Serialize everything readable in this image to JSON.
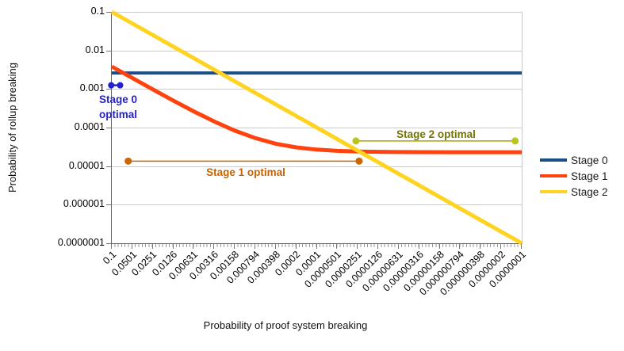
{
  "chart_data": {
    "type": "line",
    "title": "",
    "xlabel": "Probability of proof system breaking",
    "ylabel": "Probability of rollup breaking",
    "x_scale": "log-reversed",
    "y_scale": "log",
    "x_range": [
      0.1,
      1e-07
    ],
    "y_range": [
      0.1,
      1e-07
    ],
    "grid": "horizontal-only",
    "x_tick_labels": [
      "0.1",
      "0.0501",
      "0.0251",
      "0.0126",
      "0.00631",
      "0.00316",
      "0.00158",
      "0.000794",
      "0.000398",
      "0.0002",
      "0.0001",
      "0.0000501",
      "0.0000251",
      "0.0000126",
      "0.00000631",
      "0.00000316",
      "0.00000158",
      "0.000000794",
      "0.000000398",
      "0.0000002",
      "0.0000001"
    ],
    "y_tick_labels": [
      "0.1",
      "0.01",
      "0.001",
      "0.0001",
      "0.00001",
      "0.000001",
      "0.0000001"
    ],
    "series": [
      {
        "name": "Stage 0",
        "color": "#1b4e89",
        "width": 4,
        "points": [
          [
            0.1,
            0.0026
          ],
          [
            1e-07,
            0.0026
          ]
        ]
      },
      {
        "name": "Stage 1",
        "color": "#ff420e",
        "width": 5,
        "points": [
          [
            0.1,
            0.00382
          ],
          [
            0.0501,
            0.00193
          ],
          [
            0.0251,
            0.00098
          ],
          [
            0.0126,
            0.000502
          ],
          [
            0.00631,
            0.000263
          ],
          [
            0.00316,
            0.000143
          ],
          [
            0.00158,
            8.3e-05
          ],
          [
            0.000794,
            5.32e-05
          ],
          [
            0.000398,
            3.81e-05
          ],
          [
            0.0002,
            3.06e-05
          ],
          [
            0.0001,
            2.68e-05
          ],
          [
            5.01e-05,
            2.49e-05
          ],
          [
            2.51e-05,
            2.4e-05
          ],
          [
            1.26e-05,
            2.35e-05
          ],
          [
            6.31e-06,
            2.32e-05
          ],
          [
            3.16e-06,
            2.31e-05
          ],
          [
            1e-06,
            2.3e-05
          ],
          [
            1e-07,
            2.3e-05
          ]
        ]
      },
      {
        "name": "Stage 2",
        "color": "#ffd320",
        "width": 5,
        "points": [
          [
            0.1,
            0.1
          ],
          [
            1e-07,
            1e-07
          ]
        ]
      }
    ],
    "annotations": [
      {
        "id": "stage0",
        "label_line1": "Stage 0",
        "label_line2": "optimal",
        "line_color": "#2222cc",
        "dot_color": "#2222cc",
        "dot_r": 4,
        "line_width": 2.5,
        "y": 0.00125,
        "x1": 0.102,
        "x2": 0.0755
      },
      {
        "id": "stage1",
        "label": "Stage 1 optimal",
        "line_color": "#cc6600",
        "dot_color": "#cc6600",
        "dot_r": 4.5,
        "line_width": 1.5,
        "y": 1.35e-05,
        "x1": 0.0575,
        "x2": 2.4e-05
      },
      {
        "id": "stage2",
        "label": "Stage 2 optimal",
        "line_color": "#a8a800",
        "dot_color": "#b9c41c",
        "dot_r": 4.5,
        "line_width": 1.5,
        "y": 4.5e-05,
        "x1": 2.67e-05,
        "x2": 1.25e-07
      }
    ],
    "legend": {
      "position": "right",
      "entries": [
        {
          "label": "Stage 0",
          "color": "#1b4e89"
        },
        {
          "label": "Stage 1",
          "color": "#ff420e"
        },
        {
          "label": "Stage 2",
          "color": "#ffd320"
        }
      ]
    }
  }
}
